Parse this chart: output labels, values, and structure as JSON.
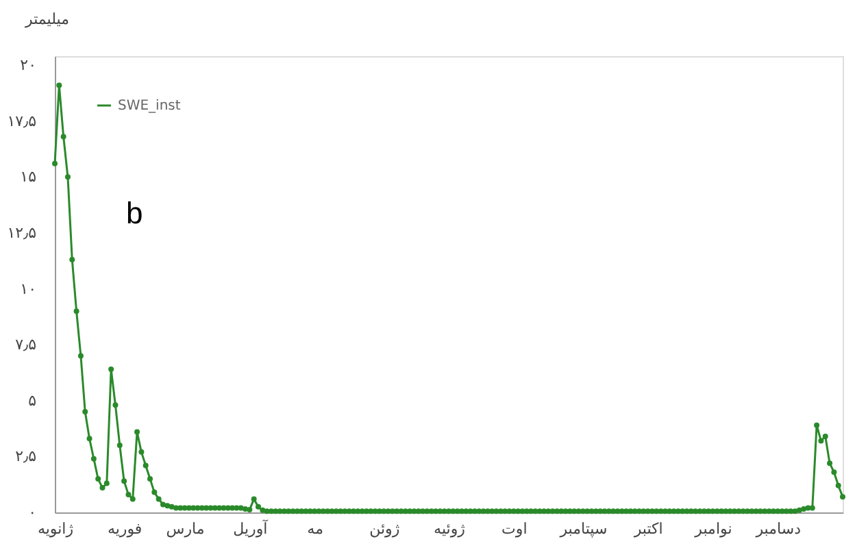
{
  "chart_data": {
    "type": "line",
    "ylabel": "میلیمتر",
    "annotations": [
      "b"
    ],
    "categories": [
      "ژانویه",
      null,
      null,
      null,
      null,
      null,
      null,
      null,
      null,
      null,
      null,
      null,
      null,
      null,
      null,
      null,
      "فوریه",
      null,
      null,
      null,
      null,
      null,
      null,
      null,
      null,
      null,
      null,
      null,
      null,
      null,
      "مارس",
      null,
      null,
      null,
      null,
      null,
      null,
      null,
      null,
      null,
      null,
      null,
      null,
      null,
      null,
      "آوریل",
      null,
      null,
      null,
      null,
      null,
      null,
      null,
      null,
      null,
      null,
      null,
      null,
      null,
      null,
      "مه",
      null,
      null,
      null,
      null,
      null,
      null,
      null,
      null,
      null,
      null,
      null,
      null,
      null,
      null,
      null,
      "ژوئن",
      null,
      null,
      null,
      null,
      null,
      null,
      null,
      null,
      null,
      null,
      null,
      null,
      null,
      null,
      "ژوئیه",
      null,
      null,
      null,
      null,
      null,
      null,
      null,
      null,
      null,
      null,
      null,
      null,
      null,
      null,
      "اوت",
      null,
      null,
      null,
      null,
      null,
      null,
      null,
      null,
      null,
      null,
      null,
      null,
      null,
      null,
      null,
      "سپتامبر",
      null,
      null,
      null,
      null,
      null,
      null,
      null,
      null,
      null,
      null,
      null,
      null,
      null,
      null,
      "اکتبر",
      null,
      null,
      null,
      null,
      null,
      null,
      null,
      null,
      null,
      null,
      null,
      null,
      null,
      null,
      "نوامبر",
      null,
      null,
      null,
      null,
      null,
      null,
      null,
      null,
      null,
      null,
      null,
      null,
      null,
      null,
      "دسامبر",
      null,
      null,
      null,
      null,
      null,
      null,
      null,
      null,
      null,
      null,
      null,
      null,
      null,
      null,
      null
    ],
    "ylim": [
      0,
      20.4
    ],
    "yticks": [
      {
        "value": 0,
        "label": "۰"
      },
      {
        "value": 2.5,
        "label": "۲٫۵"
      },
      {
        "value": 5,
        "label": "۵"
      },
      {
        "value": 7.5,
        "label": "۷٫۵"
      },
      {
        "value": 10,
        "label": "۱۰"
      },
      {
        "value": 12.5,
        "label": "۱۲٫۵"
      },
      {
        "value": 15,
        "label": "۱۵"
      },
      {
        "value": 17.5,
        "label": "۱۷٫۵"
      },
      {
        "value": 20,
        "label": "۲۰"
      }
    ],
    "grid": false,
    "legend": "top left",
    "marker": "circle",
    "line_style": "solid",
    "series": [
      {
        "name": "SWE_inst",
        "color": "#2a8a2a",
        "values": [
          15.6,
          19.1,
          16.8,
          15.0,
          11.3,
          9.0,
          7.0,
          4.5,
          3.3,
          2.4,
          1.5,
          1.1,
          1.3,
          6.4,
          4.8,
          3.0,
          1.4,
          0.8,
          0.6,
          3.6,
          2.7,
          2.1,
          1.5,
          0.9,
          0.6,
          0.35,
          0.3,
          0.25,
          0.2,
          0.2,
          0.2,
          0.2,
          0.2,
          0.2,
          0.2,
          0.2,
          0.2,
          0.2,
          0.2,
          0.2,
          0.2,
          0.2,
          0.2,
          0.2,
          0.15,
          0.12,
          0.6,
          0.25,
          0.1,
          0.05,
          0.05,
          0.05,
          0.05,
          0.05,
          0.05,
          0.05,
          0.05,
          0.05,
          0.05,
          0.05,
          0.05,
          0.05,
          0.05,
          0.05,
          0.05,
          0.05,
          0.05,
          0.05,
          0.05,
          0.05,
          0.05,
          0.05,
          0.05,
          0.05,
          0.05,
          0.05,
          0.05,
          0.05,
          0.05,
          0.05,
          0.05,
          0.05,
          0.05,
          0.05,
          0.05,
          0.05,
          0.05,
          0.05,
          0.05,
          0.05,
          0.05,
          0.05,
          0.05,
          0.05,
          0.05,
          0.05,
          0.05,
          0.05,
          0.05,
          0.05,
          0.05,
          0.05,
          0.05,
          0.05,
          0.05,
          0.05,
          0.05,
          0.05,
          0.05,
          0.05,
          0.05,
          0.05,
          0.05,
          0.05,
          0.05,
          0.05,
          0.05,
          0.05,
          0.05,
          0.05,
          0.05,
          0.05,
          0.05,
          0.05,
          0.05,
          0.05,
          0.05,
          0.05,
          0.05,
          0.05,
          0.05,
          0.05,
          0.05,
          0.05,
          0.05,
          0.05,
          0.05,
          0.05,
          0.05,
          0.05,
          0.05,
          0.05,
          0.05,
          0.05,
          0.05,
          0.05,
          0.05,
          0.05,
          0.05,
          0.05,
          0.05,
          0.05,
          0.05,
          0.05,
          0.05,
          0.05,
          0.05,
          0.05,
          0.05,
          0.05,
          0.05,
          0.05,
          0.05,
          0.05,
          0.05,
          0.05,
          0.05,
          0.05,
          0.05,
          0.05,
          0.05,
          0.05,
          0.1,
          0.15,
          0.2,
          0.2,
          3.9,
          3.2,
          3.4,
          2.2,
          1.8,
          1.2,
          0.7
        ]
      }
    ]
  }
}
